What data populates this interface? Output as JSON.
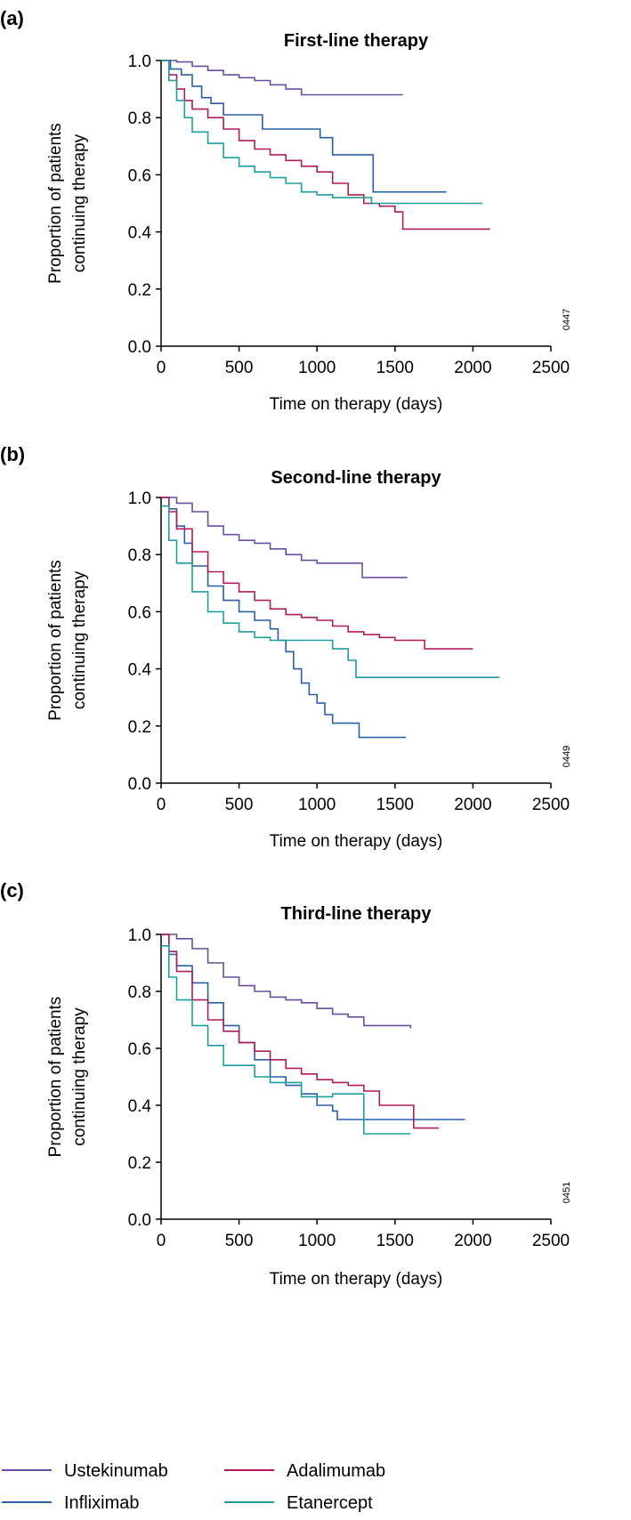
{
  "colors": {
    "Ustekinumab": "#6a4fa0",
    "Infliximab": "#2a5fa8",
    "Adalimumab": "#b01c5a",
    "Etanercept": "#1e9ea0"
  },
  "legend": {
    "items": [
      {
        "name": "Ustekinumab",
        "color": "#6a4fa0"
      },
      {
        "name": "Adalimumab",
        "color": "#b01c5a"
      },
      {
        "name": "Infliximab",
        "color": "#2a5fa8"
      },
      {
        "name": "Etanercept",
        "color": "#1e9ea0"
      }
    ]
  },
  "chart_data": [
    {
      "type": "line",
      "panel": "(a)",
      "title": "First-line therapy",
      "xlabel": "Time on therapy (days)",
      "ylabel_lines": [
        "Proportion of patients",
        "continuing therapy"
      ],
      "xlim": [
        0,
        2500
      ],
      "ylim": [
        0,
        1.0
      ],
      "xticks": [
        0,
        500,
        1000,
        1500,
        2000,
        2500
      ],
      "yticks": [
        "0.0",
        "0.2",
        "0.4",
        "0.6",
        "0.8",
        "1.0"
      ],
      "code": "0447",
      "grid": false,
      "series": [
        {
          "name": "Ustekinumab",
          "points": [
            [
              0,
              1.0
            ],
            [
              100,
              0.995
            ],
            [
              200,
              0.98
            ],
            [
              300,
              0.965
            ],
            [
              400,
              0.95
            ],
            [
              500,
              0.94
            ],
            [
              600,
              0.93
            ],
            [
              700,
              0.915
            ],
            [
              800,
              0.9
            ],
            [
              900,
              0.88
            ],
            [
              1000,
              0.88
            ],
            [
              1550,
              0.88
            ]
          ]
        },
        {
          "name": "Infliximab",
          "points": [
            [
              0,
              1.0
            ],
            [
              60,
              0.97
            ],
            [
              130,
              0.95
            ],
            [
              200,
              0.91
            ],
            [
              260,
              0.87
            ],
            [
              320,
              0.85
            ],
            [
              400,
              0.81
            ],
            [
              600,
              0.81
            ],
            [
              650,
              0.76
            ],
            [
              1000,
              0.76
            ],
            [
              1020,
              0.73
            ],
            [
              1080,
              0.73
            ],
            [
              1100,
              0.67
            ],
            [
              1330,
              0.67
            ],
            [
              1360,
              0.54
            ],
            [
              1830,
              0.54
            ]
          ]
        },
        {
          "name": "Adalimumab",
          "points": [
            [
              0,
              1.0
            ],
            [
              50,
              0.95
            ],
            [
              100,
              0.9
            ],
            [
              150,
              0.86
            ],
            [
              200,
              0.83
            ],
            [
              300,
              0.8
            ],
            [
              400,
              0.76
            ],
            [
              500,
              0.72
            ],
            [
              600,
              0.69
            ],
            [
              700,
              0.67
            ],
            [
              800,
              0.65
            ],
            [
              900,
              0.63
            ],
            [
              1000,
              0.61
            ],
            [
              1100,
              0.57
            ],
            [
              1200,
              0.53
            ],
            [
              1300,
              0.5
            ],
            [
              1400,
              0.49
            ],
            [
              1500,
              0.47
            ],
            [
              1550,
              0.41
            ],
            [
              2110,
              0.41
            ]
          ]
        },
        {
          "name": "Etanercept",
          "points": [
            [
              0,
              1.0
            ],
            [
              50,
              0.93
            ],
            [
              100,
              0.86
            ],
            [
              150,
              0.8
            ],
            [
              200,
              0.75
            ],
            [
              300,
              0.71
            ],
            [
              400,
              0.66
            ],
            [
              500,
              0.63
            ],
            [
              600,
              0.61
            ],
            [
              700,
              0.59
            ],
            [
              800,
              0.57
            ],
            [
              900,
              0.54
            ],
            [
              1000,
              0.53
            ],
            [
              1100,
              0.52
            ],
            [
              1200,
              0.52
            ],
            [
              1300,
              0.52
            ],
            [
              1350,
              0.5
            ],
            [
              2060,
              0.5
            ]
          ]
        }
      ]
    },
    {
      "type": "line",
      "panel": "(b)",
      "title": "Second-line therapy",
      "xlabel": "Time on therapy (days)",
      "ylabel_lines": [
        "Proportion of patients",
        "continuing therapy"
      ],
      "xlim": [
        0,
        2500
      ],
      "ylim": [
        0,
        1.0
      ],
      "xticks": [
        0,
        500,
        1000,
        1500,
        2000,
        2500
      ],
      "yticks": [
        "0.0",
        "0.2",
        "0.4",
        "0.6",
        "0.8",
        "1.0"
      ],
      "code": "0449",
      "grid": false,
      "series": [
        {
          "name": "Ustekinumab",
          "points": [
            [
              0,
              1.0
            ],
            [
              100,
              0.98
            ],
            [
              200,
              0.95
            ],
            [
              300,
              0.9
            ],
            [
              400,
              0.87
            ],
            [
              500,
              0.85
            ],
            [
              600,
              0.84
            ],
            [
              700,
              0.82
            ],
            [
              800,
              0.8
            ],
            [
              900,
              0.78
            ],
            [
              1000,
              0.77
            ],
            [
              1100,
              0.77
            ],
            [
              1280,
              0.77
            ],
            [
              1290,
              0.72
            ],
            [
              1580,
              0.72
            ]
          ]
        },
        {
          "name": "Infliximab",
          "points": [
            [
              0,
              1.0
            ],
            [
              50,
              0.96
            ],
            [
              100,
              0.9
            ],
            [
              150,
              0.84
            ],
            [
              200,
              0.76
            ],
            [
              300,
              0.69
            ],
            [
              400,
              0.64
            ],
            [
              500,
              0.6
            ],
            [
              600,
              0.57
            ],
            [
              700,
              0.54
            ],
            [
              750,
              0.5
            ],
            [
              800,
              0.46
            ],
            [
              850,
              0.4
            ],
            [
              900,
              0.35
            ],
            [
              950,
              0.31
            ],
            [
              1000,
              0.28
            ],
            [
              1050,
              0.24
            ],
            [
              1100,
              0.21
            ],
            [
              1250,
              0.21
            ],
            [
              1270,
              0.16
            ],
            [
              1570,
              0.16
            ]
          ]
        },
        {
          "name": "Adalimumab",
          "points": [
            [
              0,
              1.0
            ],
            [
              50,
              0.95
            ],
            [
              100,
              0.89
            ],
            [
              200,
              0.81
            ],
            [
              300,
              0.74
            ],
            [
              400,
              0.7
            ],
            [
              500,
              0.67
            ],
            [
              600,
              0.64
            ],
            [
              700,
              0.61
            ],
            [
              800,
              0.59
            ],
            [
              900,
              0.58
            ],
            [
              1000,
              0.57
            ],
            [
              1100,
              0.55
            ],
            [
              1200,
              0.53
            ],
            [
              1300,
              0.52
            ],
            [
              1400,
              0.51
            ],
            [
              1500,
              0.5
            ],
            [
              1680,
              0.5
            ],
            [
              1690,
              0.47
            ],
            [
              2000,
              0.47
            ]
          ]
        },
        {
          "name": "Etanercept",
          "points": [
            [
              0,
              0.97
            ],
            [
              50,
              0.85
            ],
            [
              100,
              0.77
            ],
            [
              200,
              0.67
            ],
            [
              300,
              0.6
            ],
            [
              400,
              0.56
            ],
            [
              500,
              0.53
            ],
            [
              600,
              0.51
            ],
            [
              700,
              0.5
            ],
            [
              900,
              0.5
            ],
            [
              1100,
              0.47
            ],
            [
              1200,
              0.43
            ],
            [
              1240,
              0.43
            ],
            [
              1250,
              0.37
            ],
            [
              2170,
              0.37
            ]
          ]
        }
      ]
    },
    {
      "type": "line",
      "panel": "(c)",
      "title": "Third-line therapy",
      "xlabel": "Time on therapy (days)",
      "ylabel_lines": [
        "Proportion of patients",
        "continuing therapy"
      ],
      "xlim": [
        0,
        2500
      ],
      "ylim": [
        0,
        1.0
      ],
      "xticks": [
        0,
        500,
        1000,
        1500,
        2000,
        2500
      ],
      "yticks": [
        "0.0",
        "0.2",
        "0.4",
        "0.6",
        "0.8",
        "1.0"
      ],
      "code": "0451",
      "grid": false,
      "series": [
        {
          "name": "Ustekinumab",
          "points": [
            [
              0,
              1.0
            ],
            [
              100,
              0.985
            ],
            [
              200,
              0.95
            ],
            [
              300,
              0.9
            ],
            [
              400,
              0.85
            ],
            [
              500,
              0.82
            ],
            [
              600,
              0.8
            ],
            [
              700,
              0.78
            ],
            [
              800,
              0.77
            ],
            [
              900,
              0.76
            ],
            [
              1000,
              0.74
            ],
            [
              1100,
              0.72
            ],
            [
              1200,
              0.71
            ],
            [
              1300,
              0.68
            ],
            [
              1600,
              0.67
            ]
          ]
        },
        {
          "name": "Infliximab",
          "points": [
            [
              0,
              1.0
            ],
            [
              50,
              0.93
            ],
            [
              100,
              0.89
            ],
            [
              200,
              0.83
            ],
            [
              300,
              0.76
            ],
            [
              400,
              0.68
            ],
            [
              500,
              0.62
            ],
            [
              600,
              0.56
            ],
            [
              700,
              0.5
            ],
            [
              800,
              0.47
            ],
            [
              900,
              0.44
            ],
            [
              1000,
              0.4
            ],
            [
              1100,
              0.38
            ],
            [
              1130,
              0.35
            ],
            [
              1950,
              0.35
            ]
          ]
        },
        {
          "name": "Adalimumab",
          "points": [
            [
              0,
              1.0
            ],
            [
              50,
              0.94
            ],
            [
              100,
              0.87
            ],
            [
              200,
              0.77
            ],
            [
              300,
              0.7
            ],
            [
              400,
              0.66
            ],
            [
              500,
              0.62
            ],
            [
              600,
              0.59
            ],
            [
              700,
              0.56
            ],
            [
              800,
              0.53
            ],
            [
              900,
              0.51
            ],
            [
              1000,
              0.49
            ],
            [
              1100,
              0.48
            ],
            [
              1200,
              0.47
            ],
            [
              1300,
              0.45
            ],
            [
              1400,
              0.4
            ],
            [
              1600,
              0.4
            ],
            [
              1620,
              0.32
            ],
            [
              1780,
              0.32
            ]
          ]
        },
        {
          "name": "Etanercept",
          "points": [
            [
              0,
              0.96
            ],
            [
              50,
              0.85
            ],
            [
              100,
              0.77
            ],
            [
              200,
              0.68
            ],
            [
              300,
              0.61
            ],
            [
              400,
              0.54
            ],
            [
              500,
              0.54
            ],
            [
              600,
              0.5
            ],
            [
              700,
              0.48
            ],
            [
              900,
              0.43
            ],
            [
              1100,
              0.44
            ],
            [
              1290,
              0.44
            ],
            [
              1300,
              0.3
            ],
            [
              1600,
              0.3
            ]
          ]
        }
      ]
    }
  ]
}
